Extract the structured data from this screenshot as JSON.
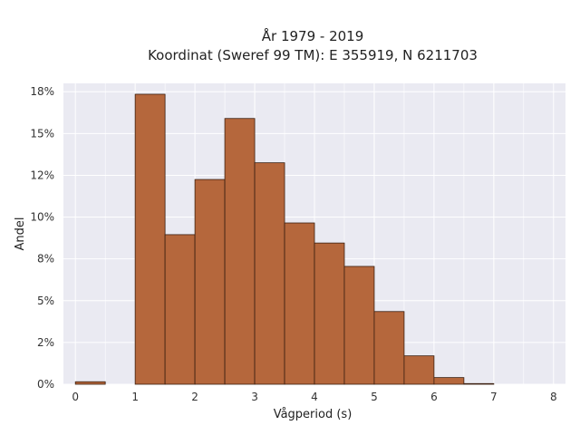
{
  "chart_data": {
    "type": "bar",
    "title": "År 1979 - 2019",
    "subtitle": "Koordinat (Sweref 99 TM): E 355919, N 6211703",
    "xlabel": "Vågperiod (s)",
    "ylabel": "Andel",
    "xlim": [
      -0.2,
      8.2
    ],
    "ylim": [
      0,
      0.18
    ],
    "x_ticks": [
      {
        "value": 0,
        "label": "0"
      },
      {
        "value": 1,
        "label": "1"
      },
      {
        "value": 2,
        "label": "2"
      },
      {
        "value": 3,
        "label": "3"
      },
      {
        "value": 4,
        "label": "4"
      },
      {
        "value": 5,
        "label": "5"
      },
      {
        "value": 6,
        "label": "6"
      },
      {
        "value": 7,
        "label": "7"
      },
      {
        "value": 8,
        "label": "8"
      }
    ],
    "y_ticks": [
      {
        "value": 0.0,
        "label": "0%"
      },
      {
        "value": 0.025,
        "label": "2%"
      },
      {
        "value": 0.05,
        "label": "5%"
      },
      {
        "value": 0.075,
        "label": "8%"
      },
      {
        "value": 0.1,
        "label": "10%"
      },
      {
        "value": 0.125,
        "label": "12%"
      },
      {
        "value": 0.15,
        "label": "15%"
      },
      {
        "value": 0.175,
        "label": "18%"
      }
    ],
    "bins": [
      {
        "x0": 0.0,
        "x1": 0.5,
        "value": 0.0015
      },
      {
        "x0": 0.5,
        "x1": 1.0,
        "value": 0.0
      },
      {
        "x0": 1.0,
        "x1": 1.5,
        "value": 0.1735
      },
      {
        "x0": 1.5,
        "x1": 2.0,
        "value": 0.0895
      },
      {
        "x0": 2.0,
        "x1": 2.5,
        "value": 0.1225
      },
      {
        "x0": 2.5,
        "x1": 3.0,
        "value": 0.159
      },
      {
        "x0": 3.0,
        "x1": 3.5,
        "value": 0.1325
      },
      {
        "x0": 3.5,
        "x1": 4.0,
        "value": 0.0965
      },
      {
        "x0": 4.0,
        "x1": 4.5,
        "value": 0.0845
      },
      {
        "x0": 4.5,
        "x1": 5.0,
        "value": 0.0705
      },
      {
        "x0": 5.0,
        "x1": 5.5,
        "value": 0.0435
      },
      {
        "x0": 5.5,
        "x1": 6.0,
        "value": 0.017
      },
      {
        "x0": 6.0,
        "x1": 6.5,
        "value": 0.004
      },
      {
        "x0": 6.5,
        "x1": 7.0,
        "value": 0.0004
      }
    ],
    "grid": true,
    "colors": {
      "bar_fill": "#b5673c",
      "bar_edge": "#3b1f10",
      "plot_background": "#eaeaf2",
      "grid": "#ffffff"
    }
  }
}
